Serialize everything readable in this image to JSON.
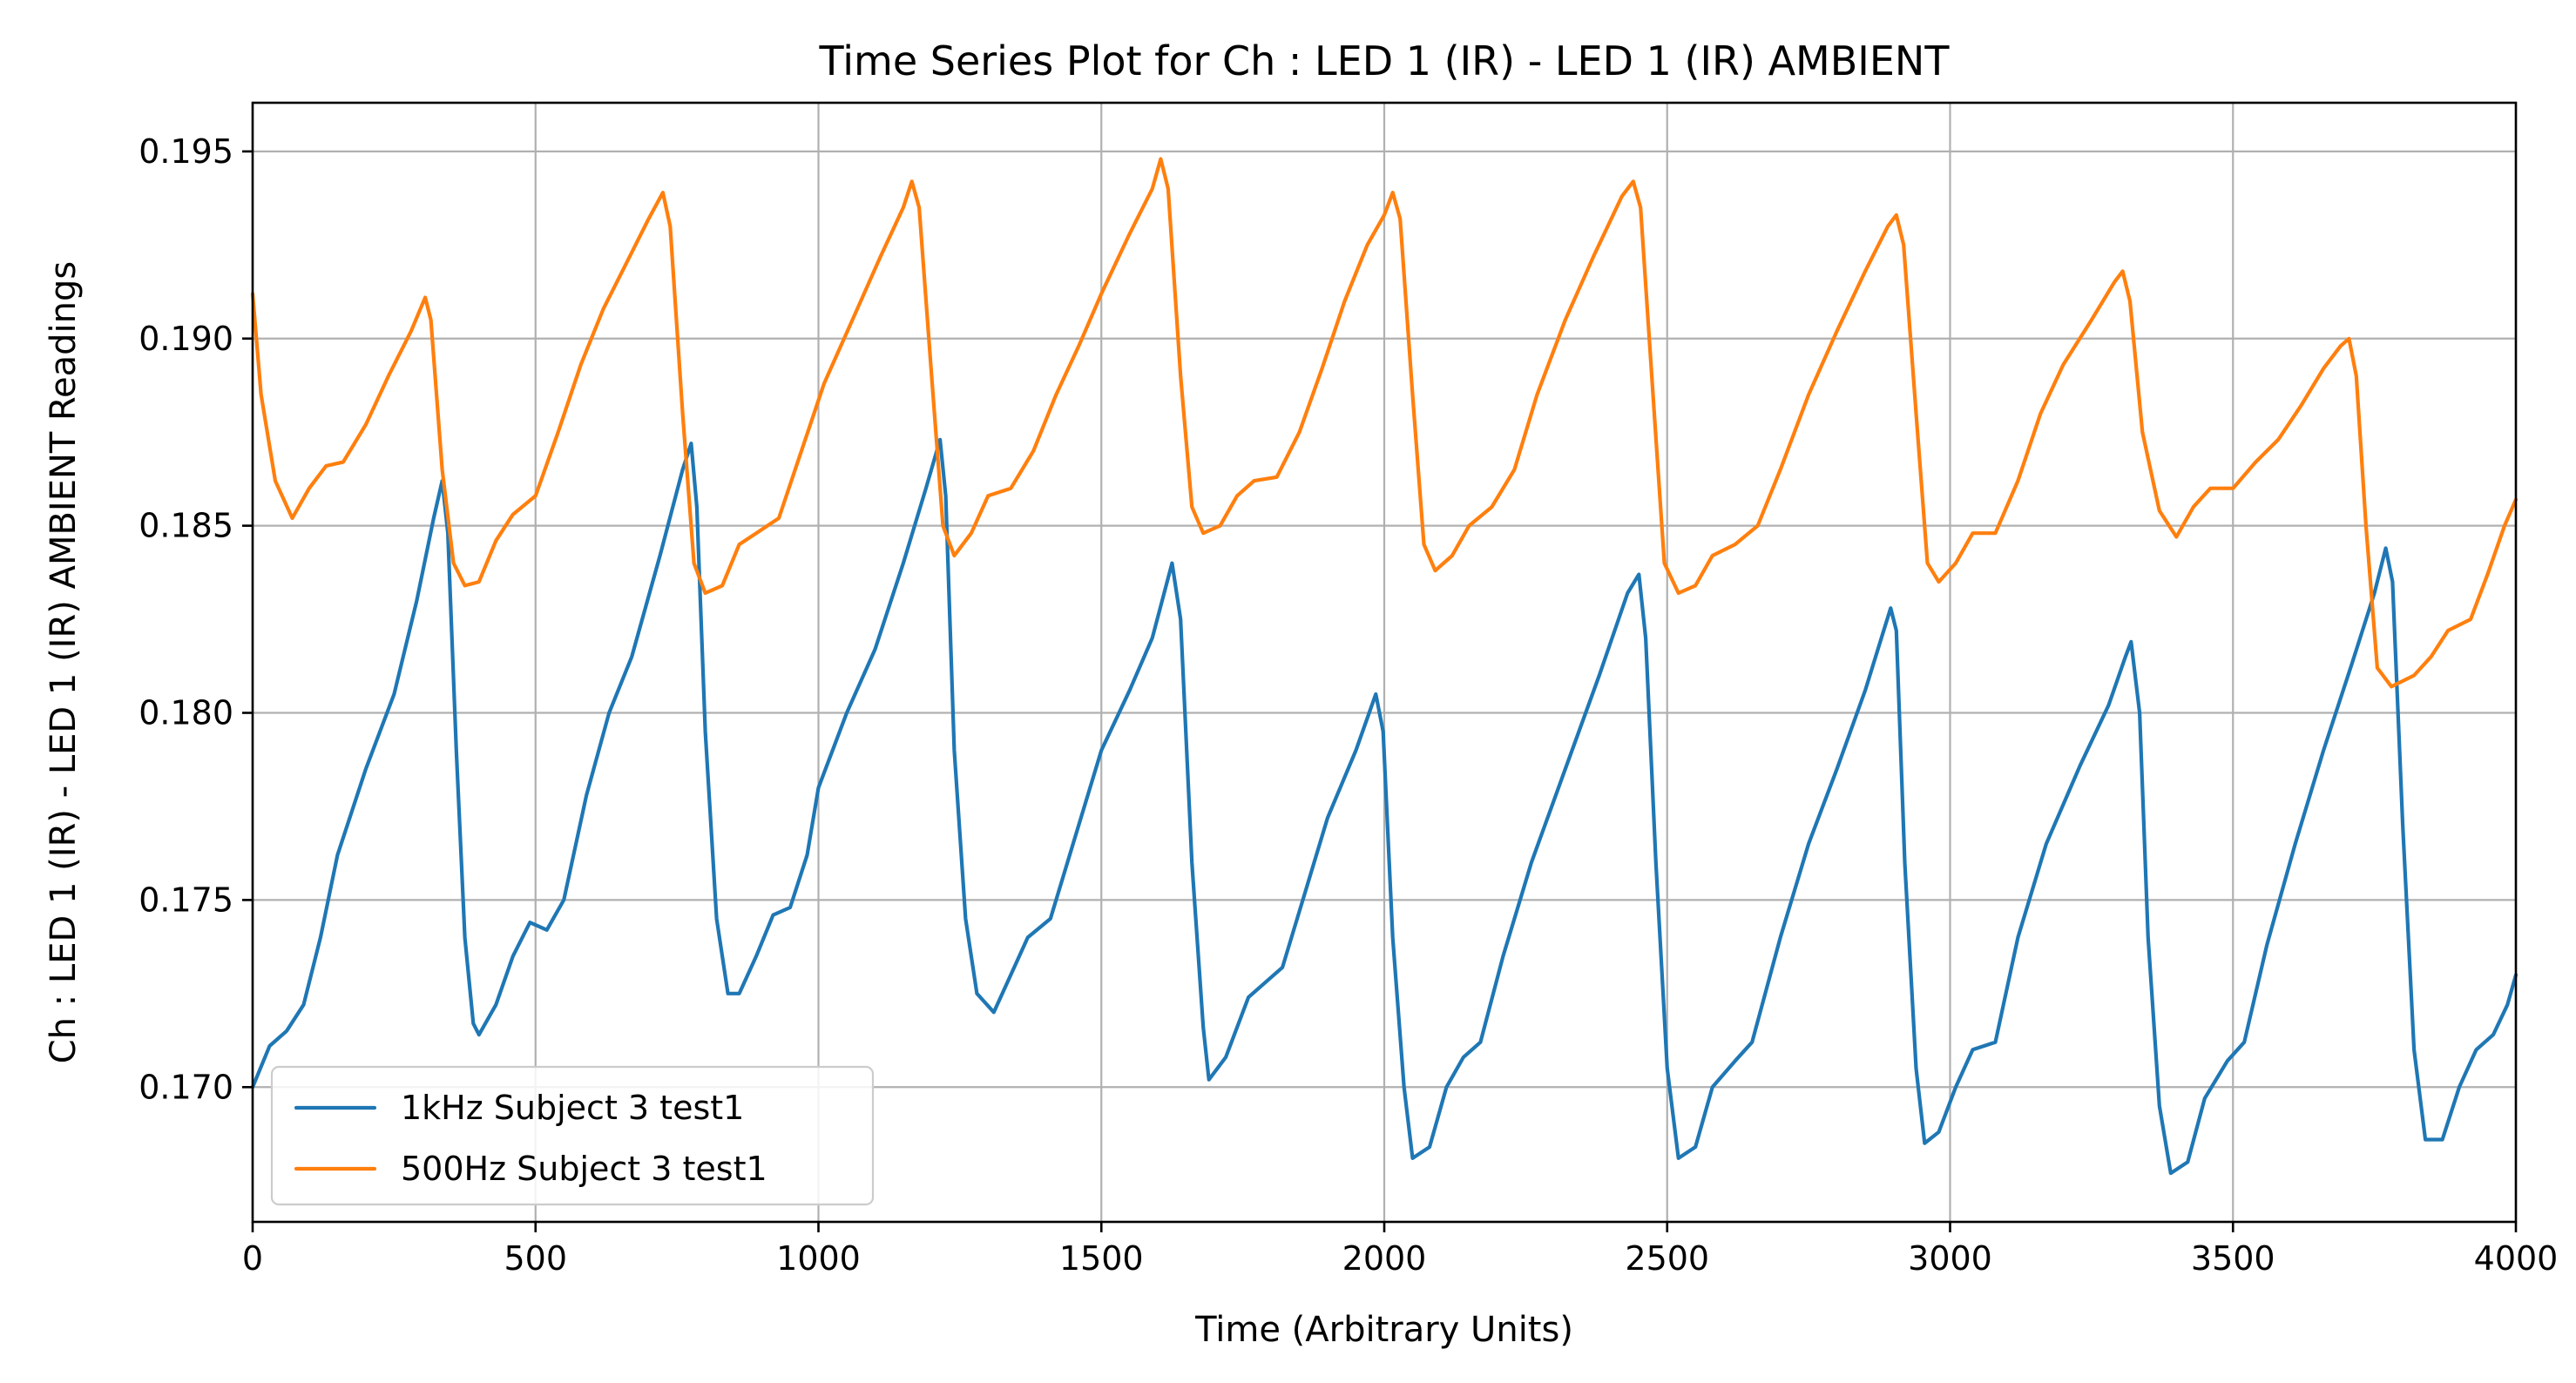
{
  "chart_data": {
    "type": "line",
    "title": "Time Series Plot for Ch : LED 1 (IR) - LED 1 (IR) AMBIENT",
    "xlabel": "Time (Arbitrary Units)",
    "ylabel": "Ch : LED 1 (IR) - LED 1 (IR) AMBIENT Readings",
    "xlim": [
      0,
      4000
    ],
    "ylim": [
      0.1664,
      0.1963
    ],
    "xticks": [
      0,
      500,
      1000,
      1500,
      2000,
      2500,
      3000,
      3500,
      4000
    ],
    "xtick_labels": [
      "0",
      "500",
      "1000",
      "1500",
      "2000",
      "2500",
      "3000",
      "3500",
      "4000"
    ],
    "yticks": [
      0.17,
      0.175,
      0.18,
      0.185,
      0.19,
      0.195
    ],
    "ytick_labels": [
      "0.170",
      "0.175",
      "0.180",
      "0.185",
      "0.190",
      "0.195"
    ],
    "grid": true,
    "legend_position": "lower-left",
    "series": [
      {
        "name": "1kHz Subject 3 test1",
        "color": "#1f77b4",
        "points": [
          [
            0,
            0.17
          ],
          [
            30,
            0.1711
          ],
          [
            60,
            0.1715
          ],
          [
            90,
            0.1722
          ],
          [
            120,
            0.174
          ],
          [
            150,
            0.1762
          ],
          [
            200,
            0.1785
          ],
          [
            250,
            0.1805
          ],
          [
            290,
            0.183
          ],
          [
            320,
            0.1852
          ],
          [
            335,
            0.1862
          ],
          [
            345,
            0.1848
          ],
          [
            360,
            0.179
          ],
          [
            375,
            0.174
          ],
          [
            390,
            0.1717
          ],
          [
            400,
            0.1714
          ],
          [
            430,
            0.1722
          ],
          [
            460,
            0.1735
          ],
          [
            490,
            0.1744
          ],
          [
            520,
            0.1742
          ],
          [
            550,
            0.175
          ],
          [
            590,
            0.1778
          ],
          [
            630,
            0.18
          ],
          [
            670,
            0.1815
          ],
          [
            720,
            0.1842
          ],
          [
            760,
            0.1865
          ],
          [
            775,
            0.1872
          ],
          [
            785,
            0.1855
          ],
          [
            800,
            0.1795
          ],
          [
            820,
            0.1745
          ],
          [
            840,
            0.1725
          ],
          [
            860,
            0.1725
          ],
          [
            890,
            0.1735
          ],
          [
            920,
            0.1746
          ],
          [
            950,
            0.1748
          ],
          [
            980,
            0.1762
          ],
          [
            1000,
            0.178
          ],
          [
            1050,
            0.18
          ],
          [
            1100,
            0.1817
          ],
          [
            1150,
            0.184
          ],
          [
            1190,
            0.186
          ],
          [
            1215,
            0.1873
          ],
          [
            1225,
            0.1858
          ],
          [
            1240,
            0.179
          ],
          [
            1260,
            0.1745
          ],
          [
            1280,
            0.1725
          ],
          [
            1310,
            0.172
          ],
          [
            1340,
            0.173
          ],
          [
            1370,
            0.174
          ],
          [
            1410,
            0.1745
          ],
          [
            1450,
            0.1765
          ],
          [
            1500,
            0.179
          ],
          [
            1550,
            0.1806
          ],
          [
            1590,
            0.182
          ],
          [
            1625,
            0.184
          ],
          [
            1640,
            0.1825
          ],
          [
            1660,
            0.176
          ],
          [
            1680,
            0.1716
          ],
          [
            1690,
            0.1702
          ],
          [
            1720,
            0.1708
          ],
          [
            1760,
            0.1724
          ],
          [
            1790,
            0.1728
          ],
          [
            1820,
            0.1732
          ],
          [
            1860,
            0.1752
          ],
          [
            1900,
            0.1772
          ],
          [
            1950,
            0.179
          ],
          [
            1985,
            0.1805
          ],
          [
            1998,
            0.1795
          ],
          [
            2015,
            0.174
          ],
          [
            2035,
            0.17
          ],
          [
            2050,
            0.1681
          ],
          [
            2080,
            0.1684
          ],
          [
            2110,
            0.17
          ],
          [
            2140,
            0.1708
          ],
          [
            2170,
            0.1712
          ],
          [
            2210,
            0.1735
          ],
          [
            2260,
            0.176
          ],
          [
            2320,
            0.1785
          ],
          [
            2380,
            0.181
          ],
          [
            2430,
            0.1832
          ],
          [
            2450,
            0.1837
          ],
          [
            2462,
            0.182
          ],
          [
            2480,
            0.176
          ],
          [
            2500,
            0.1705
          ],
          [
            2520,
            0.1681
          ],
          [
            2550,
            0.1684
          ],
          [
            2580,
            0.17
          ],
          [
            2620,
            0.1707
          ],
          [
            2650,
            0.1712
          ],
          [
            2700,
            0.174
          ],
          [
            2750,
            0.1765
          ],
          [
            2800,
            0.1785
          ],
          [
            2850,
            0.1806
          ],
          [
            2895,
            0.1828
          ],
          [
            2905,
            0.1822
          ],
          [
            2920,
            0.176
          ],
          [
            2940,
            0.1705
          ],
          [
            2955,
            0.1685
          ],
          [
            2980,
            0.1688
          ],
          [
            3010,
            0.17
          ],
          [
            3040,
            0.171
          ],
          [
            3080,
            0.1712
          ],
          [
            3120,
            0.174
          ],
          [
            3170,
            0.1765
          ],
          [
            3230,
            0.1786
          ],
          [
            3280,
            0.1802
          ],
          [
            3310,
            0.1815
          ],
          [
            3320,
            0.1819
          ],
          [
            3335,
            0.18
          ],
          [
            3350,
            0.174
          ],
          [
            3370,
            0.1695
          ],
          [
            3390,
            0.1677
          ],
          [
            3420,
            0.168
          ],
          [
            3450,
            0.1697
          ],
          [
            3490,
            0.1707
          ],
          [
            3520,
            0.1712
          ],
          [
            3560,
            0.1738
          ],
          [
            3610,
            0.1765
          ],
          [
            3660,
            0.179
          ],
          [
            3710,
            0.1813
          ],
          [
            3750,
            0.1832
          ],
          [
            3770,
            0.1844
          ],
          [
            3782,
            0.1835
          ],
          [
            3800,
            0.177
          ],
          [
            3820,
            0.171
          ],
          [
            3840,
            0.1686
          ],
          [
            3870,
            0.1686
          ],
          [
            3900,
            0.17
          ],
          [
            3930,
            0.171
          ],
          [
            3960,
            0.1714
          ],
          [
            3985,
            0.1722
          ],
          [
            4000,
            0.173
          ]
        ]
      },
      {
        "name": "500Hz Subject 3 test1",
        "color": "#ff7f0e",
        "points": [
          [
            0,
            0.1912
          ],
          [
            15,
            0.1885
          ],
          [
            40,
            0.1862
          ],
          [
            70,
            0.1852
          ],
          [
            100,
            0.186
          ],
          [
            130,
            0.1866
          ],
          [
            160,
            0.1867
          ],
          [
            200,
            0.1877
          ],
          [
            240,
            0.189
          ],
          [
            280,
            0.1902
          ],
          [
            305,
            0.1911
          ],
          [
            315,
            0.1905
          ],
          [
            335,
            0.1865
          ],
          [
            355,
            0.184
          ],
          [
            375,
            0.1834
          ],
          [
            400,
            0.1835
          ],
          [
            430,
            0.1846
          ],
          [
            460,
            0.1853
          ],
          [
            500,
            0.1858
          ],
          [
            540,
            0.1875
          ],
          [
            580,
            0.1893
          ],
          [
            620,
            0.1908
          ],
          [
            660,
            0.192
          ],
          [
            700,
            0.1932
          ],
          [
            725,
            0.1939
          ],
          [
            738,
            0.193
          ],
          [
            760,
            0.188
          ],
          [
            780,
            0.184
          ],
          [
            800,
            0.1832
          ],
          [
            830,
            0.1834
          ],
          [
            860,
            0.1845
          ],
          [
            890,
            0.1848
          ],
          [
            930,
            0.1852
          ],
          [
            970,
            0.187
          ],
          [
            1010,
            0.1888
          ],
          [
            1060,
            0.1905
          ],
          [
            1110,
            0.1922
          ],
          [
            1150,
            0.1935
          ],
          [
            1165,
            0.1942
          ],
          [
            1178,
            0.1935
          ],
          [
            1200,
            0.189
          ],
          [
            1220,
            0.185
          ],
          [
            1240,
            0.1842
          ],
          [
            1270,
            0.1848
          ],
          [
            1300,
            0.1858
          ],
          [
            1340,
            0.186
          ],
          [
            1380,
            0.187
          ],
          [
            1420,
            0.1885
          ],
          [
            1460,
            0.1898
          ],
          [
            1500,
            0.1912
          ],
          [
            1550,
            0.1928
          ],
          [
            1590,
            0.194
          ],
          [
            1605,
            0.1948
          ],
          [
            1618,
            0.194
          ],
          [
            1640,
            0.189
          ],
          [
            1660,
            0.1855
          ],
          [
            1680,
            0.1848
          ],
          [
            1710,
            0.185
          ],
          [
            1740,
            0.1858
          ],
          [
            1770,
            0.1862
          ],
          [
            1810,
            0.1863
          ],
          [
            1850,
            0.1875
          ],
          [
            1890,
            0.1892
          ],
          [
            1930,
            0.191
          ],
          [
            1970,
            0.1925
          ],
          [
            2000,
            0.1933
          ],
          [
            2015,
            0.1939
          ],
          [
            2028,
            0.1932
          ],
          [
            2050,
            0.1885
          ],
          [
            2070,
            0.1845
          ],
          [
            2090,
            0.1838
          ],
          [
            2120,
            0.1842
          ],
          [
            2150,
            0.185
          ],
          [
            2190,
            0.1855
          ],
          [
            2230,
            0.1865
          ],
          [
            2270,
            0.1885
          ],
          [
            2320,
            0.1905
          ],
          [
            2370,
            0.1922
          ],
          [
            2420,
            0.1938
          ],
          [
            2440,
            0.1942
          ],
          [
            2453,
            0.1935
          ],
          [
            2475,
            0.1885
          ],
          [
            2495,
            0.184
          ],
          [
            2520,
            0.1832
          ],
          [
            2550,
            0.1834
          ],
          [
            2580,
            0.1842
          ],
          [
            2620,
            0.1845
          ],
          [
            2660,
            0.185
          ],
          [
            2700,
            0.1865
          ],
          [
            2750,
            0.1885
          ],
          [
            2800,
            0.1902
          ],
          [
            2850,
            0.1918
          ],
          [
            2890,
            0.193
          ],
          [
            2905,
            0.1933
          ],
          [
            2918,
            0.1925
          ],
          [
            2940,
            0.188
          ],
          [
            2960,
            0.184
          ],
          [
            2980,
            0.1835
          ],
          [
            3010,
            0.184
          ],
          [
            3040,
            0.1848
          ],
          [
            3080,
            0.1848
          ],
          [
            3120,
            0.1862
          ],
          [
            3160,
            0.188
          ],
          [
            3200,
            0.1893
          ],
          [
            3250,
            0.1905
          ],
          [
            3290,
            0.1915
          ],
          [
            3305,
            0.1918
          ],
          [
            3318,
            0.191
          ],
          [
            3340,
            0.1875
          ],
          [
            3370,
            0.1854
          ],
          [
            3400,
            0.1847
          ],
          [
            3430,
            0.1855
          ],
          [
            3460,
            0.186
          ],
          [
            3500,
            0.186
          ],
          [
            3540,
            0.1867
          ],
          [
            3580,
            0.1873
          ],
          [
            3620,
            0.1882
          ],
          [
            3660,
            0.1892
          ],
          [
            3690,
            0.1898
          ],
          [
            3705,
            0.19
          ],
          [
            3718,
            0.189
          ],
          [
            3735,
            0.185
          ],
          [
            3755,
            0.1812
          ],
          [
            3780,
            0.1807
          ],
          [
            3820,
            0.181
          ],
          [
            3850,
            0.1815
          ],
          [
            3880,
            0.1822
          ],
          [
            3920,
            0.1825
          ],
          [
            3950,
            0.1837
          ],
          [
            3980,
            0.185
          ],
          [
            4000,
            0.1857
          ]
        ]
      }
    ]
  }
}
